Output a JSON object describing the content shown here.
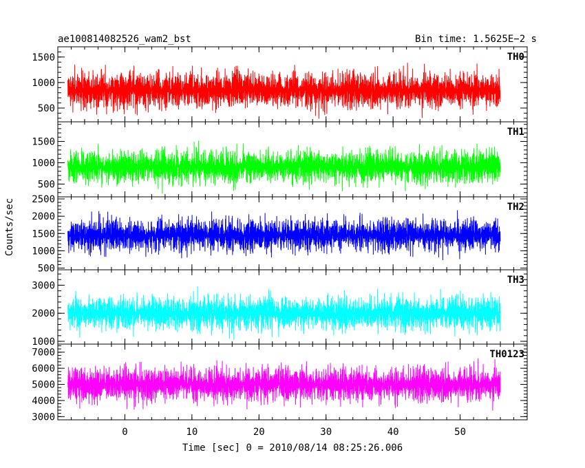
{
  "header": {
    "title": "ae100814082526_wam2_bst",
    "bin_time": "Bin time: 1.5625E−2 s"
  },
  "chart_data": {
    "type": "line",
    "ylabel": "Counts/sec",
    "xlabel": "Time [sec] 0 = 2010/08/14 08:25:26.006",
    "x_range": [
      -8.5,
      56
    ],
    "xlim": [
      -10,
      60
    ],
    "x_ticks": [
      0,
      10,
      20,
      30,
      40,
      50
    ],
    "x_tick_labels": [
      "0",
      "10",
      "20",
      "30",
      "40",
      "50"
    ],
    "panels": [
      {
        "name": "TH0",
        "color": "#ff0000",
        "ylim": [
          230,
          1700
        ],
        "y_ticks": [
          500,
          1000,
          1500
        ],
        "y_tick_labels": [
          "500",
          "1000",
          "1500"
        ],
        "mean": 850,
        "spread": 600,
        "min": 240,
        "max": 1680
      },
      {
        "name": "TH1",
        "color": "#00ff00",
        "ylim": [
          200,
          1960
        ],
        "y_ticks": [
          500,
          1000,
          1500
        ],
        "y_tick_labels": [
          "500",
          "1000",
          "1500"
        ],
        "mean": 900,
        "spread": 650,
        "min": 230,
        "max": 1920
      },
      {
        "name": "TH2",
        "color": "#0000ff",
        "ylim": [
          450,
          2560
        ],
        "y_ticks": [
          500,
          1000,
          1500,
          2000,
          2500
        ],
        "y_tick_labels": [
          "500",
          "1000",
          "1500",
          "2000",
          "2500"
        ],
        "mean": 1450,
        "spread": 800,
        "min": 520,
        "max": 2500
      },
      {
        "name": "TH3",
        "color": "#00ffff",
        "ylim": [
          900,
          3550
        ],
        "y_ticks": [
          1000,
          2000,
          3000
        ],
        "y_tick_labels": [
          "1000",
          "2000",
          "3000"
        ],
        "mean": 2000,
        "spread": 1000,
        "min": 950,
        "max": 3480
      },
      {
        "name": "TH0123",
        "color": "#ff00ff",
        "ylim": [
          2800,
          7500
        ],
        "y_ticks": [
          3000,
          4000,
          5000,
          6000,
          7000
        ],
        "y_tick_labels": [
          "3000",
          "4000",
          "5000",
          "6000",
          "7000"
        ],
        "mean": 5000,
        "spread": 1800,
        "min": 2900,
        "max": 7400
      }
    ]
  }
}
